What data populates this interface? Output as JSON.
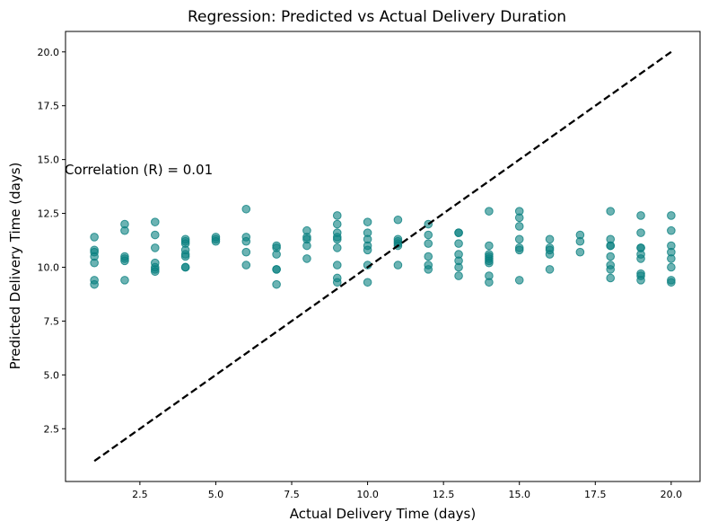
{
  "chart_data": {
    "type": "scatter",
    "title": "Regression: Predicted vs Actual Delivery Duration",
    "xlabel": "Actual Delivery Time (days)",
    "ylabel": "Predicted Delivery Time (days)",
    "xlim": [
      0.05,
      20.95
    ],
    "ylim": [
      0.05,
      20.95
    ],
    "xticks": [
      2.5,
      5.0,
      7.5,
      10.0,
      12.5,
      15.0,
      17.5,
      20.0
    ],
    "xtick_labels": [
      "2.5",
      "5.0",
      "7.5",
      "10.0",
      "12.5",
      "15.0",
      "17.5",
      "20.0"
    ],
    "yticks": [
      2.5,
      5.0,
      7.5,
      10.0,
      12.5,
      15.0,
      17.5,
      20.0
    ],
    "ytick_labels": [
      "2.5",
      "5.0",
      "7.5",
      "10.0",
      "12.5",
      "15.0",
      "17.5",
      "20.0"
    ],
    "grid": false,
    "annotation": "Correlation (R) = 0.01",
    "reference_line": {
      "x": [
        1,
        20
      ],
      "y": [
        1,
        20
      ],
      "style": "dashed",
      "color": "#000000"
    },
    "marker_color": "#0a8080",
    "points": [
      [
        1,
        11.4
      ],
      [
        1,
        10.8
      ],
      [
        1,
        10.7
      ],
      [
        1,
        10.5
      ],
      [
        1,
        10.2
      ],
      [
        1,
        9.4
      ],
      [
        1,
        9.2
      ],
      [
        2,
        12.0
      ],
      [
        2,
        11.7
      ],
      [
        2,
        10.5
      ],
      [
        2,
        10.4
      ],
      [
        2,
        10.3
      ],
      [
        2,
        9.4
      ],
      [
        3,
        12.1
      ],
      [
        3,
        11.5
      ],
      [
        3,
        10.9
      ],
      [
        3,
        10.2
      ],
      [
        3,
        10.0
      ],
      [
        3,
        9.9
      ],
      [
        3,
        9.8
      ],
      [
        4,
        11.3
      ],
      [
        4,
        11.2
      ],
      [
        4,
        11.1
      ],
      [
        4,
        10.8
      ],
      [
        4,
        10.6
      ],
      [
        4,
        10.5
      ],
      [
        4,
        10.0
      ],
      [
        4,
        10.0
      ],
      [
        5,
        11.4
      ],
      [
        5,
        11.3
      ],
      [
        5,
        11.2
      ],
      [
        6,
        12.7
      ],
      [
        6,
        11.4
      ],
      [
        6,
        11.2
      ],
      [
        6,
        10.7
      ],
      [
        6,
        10.1
      ],
      [
        7,
        11.0
      ],
      [
        7,
        10.9
      ],
      [
        7,
        10.6
      ],
      [
        7,
        9.9
      ],
      [
        7,
        9.9
      ],
      [
        7,
        9.2
      ],
      [
        8,
        11.7
      ],
      [
        8,
        11.4
      ],
      [
        8,
        11.3
      ],
      [
        8,
        11.0
      ],
      [
        8,
        10.4
      ],
      [
        9,
        12.4
      ],
      [
        9,
        12.0
      ],
      [
        9,
        11.6
      ],
      [
        9,
        11.4
      ],
      [
        9,
        11.3
      ],
      [
        9,
        10.9
      ],
      [
        9,
        10.1
      ],
      [
        9,
        9.5
      ],
      [
        9,
        9.3
      ],
      [
        10,
        12.1
      ],
      [
        10,
        11.6
      ],
      [
        10,
        11.3
      ],
      [
        10,
        11.0
      ],
      [
        10,
        10.8
      ],
      [
        10,
        10.1
      ],
      [
        10,
        9.3
      ],
      [
        11,
        12.2
      ],
      [
        11,
        11.3
      ],
      [
        11,
        11.2
      ],
      [
        11,
        11.1
      ],
      [
        11,
        11.0
      ],
      [
        11,
        10.1
      ],
      [
        12,
        12.0
      ],
      [
        12,
        11.5
      ],
      [
        12,
        11.1
      ],
      [
        12,
        10.5
      ],
      [
        12,
        10.1
      ],
      [
        12,
        9.9
      ],
      [
        13,
        11.6
      ],
      [
        13,
        11.6
      ],
      [
        13,
        11.1
      ],
      [
        13,
        10.6
      ],
      [
        13,
        10.3
      ],
      [
        13,
        10.0
      ],
      [
        13,
        9.6
      ],
      [
        14,
        12.6
      ],
      [
        14,
        11.0
      ],
      [
        14,
        10.6
      ],
      [
        14,
        10.5
      ],
      [
        14,
        10.4
      ],
      [
        14,
        10.3
      ],
      [
        14,
        10.2
      ],
      [
        14,
        9.6
      ],
      [
        14,
        9.3
      ],
      [
        15,
        12.6
      ],
      [
        15,
        12.3
      ],
      [
        15,
        11.9
      ],
      [
        15,
        11.3
      ],
      [
        15,
        10.9
      ],
      [
        15,
        10.8
      ],
      [
        15,
        9.4
      ],
      [
        16,
        11.3
      ],
      [
        16,
        10.9
      ],
      [
        16,
        10.8
      ],
      [
        16,
        10.6
      ],
      [
        16,
        9.9
      ],
      [
        17,
        11.5
      ],
      [
        17,
        11.2
      ],
      [
        17,
        10.7
      ],
      [
        18,
        12.6
      ],
      [
        18,
        11.3
      ],
      [
        18,
        11.0
      ],
      [
        18,
        11.0
      ],
      [
        18,
        10.5
      ],
      [
        18,
        10.1
      ],
      [
        18,
        9.9
      ],
      [
        18,
        9.5
      ],
      [
        19,
        12.4
      ],
      [
        19,
        11.6
      ],
      [
        19,
        10.9
      ],
      [
        19,
        10.9
      ],
      [
        19,
        10.6
      ],
      [
        19,
        10.4
      ],
      [
        19,
        9.7
      ],
      [
        19,
        9.6
      ],
      [
        19,
        9.4
      ],
      [
        20,
        12.4
      ],
      [
        20,
        11.7
      ],
      [
        20,
        11.0
      ],
      [
        20,
        10.7
      ],
      [
        20,
        10.4
      ],
      [
        20,
        10.0
      ],
      [
        20,
        9.4
      ],
      [
        20,
        9.3
      ]
    ]
  }
}
